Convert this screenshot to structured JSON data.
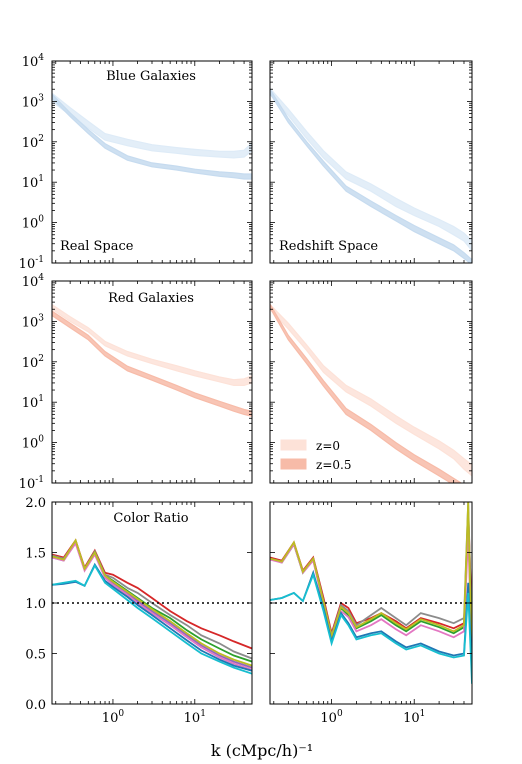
{
  "figure": {
    "xlabel": "k (cMpc/h)⁻¹",
    "legend": [
      {
        "label": "z=0",
        "color": "#fde2d8"
      },
      {
        "label": "z=0.5",
        "color": "#f7bba8"
      }
    ]
  },
  "chart_data": [
    {
      "type": "line",
      "panel": "blue-real",
      "annotations": [
        "Blue Galaxies",
        "Real Space"
      ],
      "xscale": "log",
      "yscale": "log",
      "xlim": [
        0.18,
        50
      ],
      "ylim": [
        0.1,
        10000
      ],
      "xticks": [
        "10^0",
        "10^1"
      ],
      "yticks": [
        "10^-1",
        "10^0",
        "10^1",
        "10^2",
        "10^3",
        "10^4"
      ],
      "series": [
        {
          "color": "#deebf7",
          "x": [
            0.18,
            0.3,
            0.5,
            0.8,
            1.5,
            3,
            6,
            10,
            20,
            30,
            40,
            50
          ],
          "lo": [
            1000,
            450,
            220,
            110,
            80,
            60,
            52,
            46,
            42,
            40,
            42,
            60
          ],
          "hi": [
            1600,
            700,
            320,
            160,
            115,
            85,
            72,
            65,
            58,
            58,
            62,
            95
          ]
        },
        {
          "color": "#c6dbef",
          "x": [
            0.18,
            0.3,
            0.5,
            0.8,
            1.5,
            3,
            6,
            10,
            20,
            30,
            40,
            50
          ],
          "lo": [
            1200,
            420,
            160,
            70,
            35,
            24,
            20,
            17,
            14,
            13,
            12,
            12
          ],
          "hi": [
            1500,
            520,
            200,
            90,
            45,
            30,
            25,
            21,
            18,
            17,
            16,
            16
          ]
        }
      ]
    },
    {
      "type": "line",
      "panel": "blue-redshift",
      "annotations": [
        "Redshift Space"
      ],
      "xscale": "log",
      "yscale": "log",
      "xlim": [
        0.18,
        50
      ],
      "ylim": [
        0.1,
        10000
      ],
      "xticks": [
        "10^0",
        "10^1"
      ],
      "series": [
        {
          "color": "#deebf7",
          "x": [
            0.18,
            0.3,
            0.5,
            0.8,
            1.5,
            3,
            6,
            10,
            20,
            30,
            40,
            50
          ],
          "lo": [
            1500,
            450,
            120,
            40,
            12,
            6,
            2.5,
            1.5,
            0.8,
            0.5,
            0.35,
            0.2
          ],
          "hi": [
            2100,
            650,
            180,
            60,
            18,
            9,
            4,
            2.3,
            1.2,
            0.8,
            0.55,
            0.35
          ]
        },
        {
          "color": "#c6dbef",
          "x": [
            0.18,
            0.3,
            0.5,
            0.8,
            1.5,
            3,
            6,
            10,
            20,
            30,
            40,
            50
          ],
          "lo": [
            1600,
            300,
            80,
            25,
            6,
            2.5,
            1.1,
            0.6,
            0.3,
            0.2,
            0.13,
            0.09
          ],
          "hi": [
            2000,
            380,
            100,
            33,
            8,
            3.4,
            1.5,
            0.85,
            0.42,
            0.28,
            0.18,
            0.12
          ]
        }
      ]
    },
    {
      "type": "line",
      "panel": "red-real",
      "annotations": [
        "Red Galaxies"
      ],
      "xscale": "log",
      "yscale": "log",
      "xlim": [
        0.18,
        50
      ],
      "ylim": [
        0.1,
        10000
      ],
      "xticks": [
        "10^0",
        "10^1"
      ],
      "yticks": [
        "10^-1",
        "10^0",
        "10^1",
        "10^2",
        "10^3",
        "10^4"
      ],
      "series": [
        {
          "color": "#fde2d8",
          "x": [
            0.18,
            0.3,
            0.5,
            0.8,
            1.5,
            3,
            6,
            10,
            20,
            30,
            40,
            50
          ],
          "lo": [
            2000,
            1000,
            550,
            250,
            140,
            90,
            60,
            45,
            32,
            26,
            26,
            30
          ],
          "hi": [
            2600,
            1300,
            700,
            320,
            180,
            115,
            80,
            60,
            42,
            36,
            38,
            45
          ]
        },
        {
          "color": "#f7bba8",
          "x": [
            0.18,
            0.3,
            0.5,
            0.8,
            1.5,
            3,
            6,
            10,
            20,
            30,
            40,
            50
          ],
          "lo": [
            1400,
            700,
            350,
            140,
            60,
            35,
            20,
            13,
            8,
            6,
            5,
            4.5
          ],
          "hi": [
            1800,
            900,
            450,
            180,
            78,
            45,
            26,
            17,
            10.5,
            8,
            6.6,
            6
          ]
        }
      ]
    },
    {
      "type": "line",
      "panel": "red-redshift",
      "xscale": "log",
      "yscale": "log",
      "xlim": [
        0.18,
        50
      ],
      "ylim": [
        0.1,
        10000
      ],
      "xticks": [
        "10^0",
        "10^1"
      ],
      "series": [
        {
          "color": "#fde2d8",
          "x": [
            0.18,
            0.3,
            0.5,
            0.8,
            1.5,
            3,
            6,
            10,
            20,
            30,
            40,
            50
          ],
          "lo": [
            2000,
            650,
            190,
            55,
            18,
            8,
            3,
            1.6,
            0.7,
            0.4,
            0.22,
            0.15
          ],
          "hi": [
            2600,
            900,
            260,
            80,
            26,
            12,
            4.6,
            2.4,
            1.1,
            0.65,
            0.4,
            0.28
          ]
        },
        {
          "color": "#f7bba8",
          "x": [
            0.18,
            0.3,
            0.5,
            0.8,
            1.5,
            3,
            6,
            10,
            20,
            30,
            40,
            50
          ],
          "lo": [
            2200,
            350,
            90,
            25,
            5,
            2,
            0.7,
            0.35,
            0.15,
            0.09,
            0.06,
            0.04
          ],
          "hi": [
            2700,
            450,
            120,
            34,
            7,
            2.8,
            1.0,
            0.5,
            0.22,
            0.13,
            0.09,
            0.06
          ]
        }
      ]
    },
    {
      "type": "line",
      "panel": "ratio-real",
      "annotations": [
        "Color Ratio"
      ],
      "xscale": "log",
      "yscale": "linear",
      "xlim": [
        0.18,
        50
      ],
      "ylim": [
        0.0,
        2.0
      ],
      "xticks": [
        "10^0",
        "10^1"
      ],
      "yticks": [
        "0.0",
        "0.5",
        "1.0",
        "1.5",
        "2.0"
      ],
      "reference_line": 1.0,
      "series": [
        {
          "color": "#d62728",
          "x": [
            0.18,
            0.25,
            0.35,
            0.45,
            0.6,
            0.8,
            1.0,
            1.5,
            2,
            3,
            5,
            8,
            12,
            20,
            30,
            50
          ],
          "y": [
            1.48,
            1.45,
            1.62,
            1.35,
            1.52,
            1.3,
            1.28,
            1.2,
            1.15,
            1.05,
            0.92,
            0.82,
            0.75,
            0.68,
            0.62,
            0.55
          ]
        },
        {
          "color": "#8c8c8c",
          "x": [
            0.18,
            0.25,
            0.35,
            0.45,
            0.6,
            0.8,
            1.0,
            1.5,
            2,
            3,
            5,
            8,
            12,
            20,
            30,
            50
          ],
          "y": [
            1.47,
            1.44,
            1.61,
            1.34,
            1.51,
            1.28,
            1.25,
            1.15,
            1.1,
            1.0,
            0.88,
            0.78,
            0.68,
            0.6,
            0.52,
            0.45
          ]
        },
        {
          "color": "#2ca02c",
          "x": [
            0.18,
            0.25,
            0.35,
            0.45,
            0.6,
            0.8,
            1.0,
            1.5,
            2,
            3,
            5,
            8,
            12,
            20,
            30,
            50
          ],
          "y": [
            1.46,
            1.43,
            1.6,
            1.33,
            1.5,
            1.27,
            1.22,
            1.12,
            1.05,
            0.95,
            0.85,
            0.73,
            0.64,
            0.55,
            0.48,
            0.42
          ]
        },
        {
          "color": "#9467bd",
          "x": [
            0.18,
            0.25,
            0.35,
            0.45,
            0.6,
            0.8,
            1.0,
            1.5,
            2,
            3,
            5,
            8,
            12,
            20,
            30,
            50
          ],
          "y": [
            1.45,
            1.42,
            1.6,
            1.33,
            1.49,
            1.26,
            1.2,
            1.1,
            1.02,
            0.92,
            0.8,
            0.68,
            0.58,
            0.48,
            0.42,
            0.36
          ]
        },
        {
          "color": "#e377c2",
          "x": [
            0.18,
            0.25,
            0.35,
            0.45,
            0.6,
            0.8,
            1.0,
            1.5,
            2,
            3,
            5,
            8,
            12,
            20,
            30,
            50
          ],
          "y": [
            1.45,
            1.42,
            1.59,
            1.32,
            1.48,
            1.25,
            1.18,
            1.08,
            1.0,
            0.9,
            0.78,
            0.66,
            0.56,
            0.46,
            0.4,
            0.34
          ]
        },
        {
          "color": "#bcbd22",
          "x": [
            0.18,
            0.25,
            0.35,
            0.45,
            0.6,
            0.8,
            1.0,
            1.5,
            2,
            3,
            5,
            8,
            12,
            20,
            30,
            50
          ],
          "y": [
            1.46,
            1.43,
            1.62,
            1.34,
            1.5,
            1.27,
            1.21,
            1.11,
            1.04,
            0.94,
            0.82,
            0.7,
            0.6,
            0.5,
            0.44,
            0.38
          ]
        },
        {
          "color": "#1f77b4",
          "x": [
            0.18,
            0.25,
            0.35,
            0.45,
            0.6,
            0.8,
            1.0,
            1.5,
            2,
            3,
            5,
            8,
            12,
            20,
            30,
            50
          ],
          "y": [
            1.18,
            1.19,
            1.21,
            1.17,
            1.38,
            1.22,
            1.16,
            1.06,
            0.98,
            0.88,
            0.75,
            0.63,
            0.53,
            0.44,
            0.38,
            0.33
          ]
        },
        {
          "color": "#17becf",
          "x": [
            0.18,
            0.25,
            0.35,
            0.45,
            0.6,
            0.8,
            1.0,
            1.5,
            2,
            3,
            5,
            8,
            12,
            20,
            30,
            50
          ],
          "y": [
            1.18,
            1.2,
            1.22,
            1.17,
            1.37,
            1.2,
            1.14,
            1.03,
            0.95,
            0.85,
            0.72,
            0.6,
            0.5,
            0.42,
            0.36,
            0.3
          ]
        }
      ]
    },
    {
      "type": "line",
      "panel": "ratio-redshift",
      "xscale": "log",
      "yscale": "linear",
      "xlim": [
        0.18,
        50
      ],
      "ylim": [
        0.0,
        2.0
      ],
      "xticks": [
        "10^0",
        "10^1"
      ],
      "reference_line": 1.0,
      "series": [
        {
          "color": "#d62728",
          "x": [
            0.18,
            0.25,
            0.35,
            0.45,
            0.6,
            0.8,
            1.0,
            1.3,
            1.6,
            2,
            3,
            4,
            6,
            8,
            12,
            20,
            30,
            40,
            45,
            50
          ],
          "y": [
            1.45,
            1.42,
            1.6,
            1.32,
            1.45,
            1.05,
            0.7,
            1.0,
            0.95,
            0.8,
            0.85,
            0.9,
            0.82,
            0.75,
            0.85,
            0.8,
            0.75,
            0.8,
            1.9,
            0.8
          ]
        },
        {
          "color": "#8c8c8c",
          "x": [
            0.18,
            0.25,
            0.35,
            0.45,
            0.6,
            0.8,
            1.0,
            1.3,
            1.6,
            2,
            3,
            4,
            6,
            8,
            12,
            20,
            30,
            40,
            45,
            50
          ],
          "y": [
            1.44,
            1.41,
            1.59,
            1.31,
            1.44,
            1.02,
            0.68,
            0.98,
            0.92,
            0.78,
            0.88,
            0.95,
            0.85,
            0.78,
            0.9,
            0.85,
            0.8,
            0.85,
            2.0,
            0.6
          ]
        },
        {
          "color": "#2ca02c",
          "x": [
            0.18,
            0.25,
            0.35,
            0.45,
            0.6,
            0.8,
            1.0,
            1.3,
            1.6,
            2,
            3,
            4,
            6,
            8,
            12,
            20,
            30,
            40,
            45,
            50
          ],
          "y": [
            1.44,
            1.4,
            1.58,
            1.3,
            1.43,
            1.0,
            0.66,
            0.95,
            0.88,
            0.75,
            0.82,
            0.88,
            0.78,
            0.72,
            0.82,
            0.76,
            0.7,
            0.76,
            1.8,
            0.5
          ]
        },
        {
          "color": "#e377c2",
          "x": [
            0.18,
            0.25,
            0.35,
            0.45,
            0.6,
            0.8,
            1.0,
            1.3,
            1.6,
            2,
            3,
            4,
            6,
            8,
            12,
            20,
            30,
            40,
            45,
            50
          ],
          "y": [
            1.43,
            1.4,
            1.58,
            1.3,
            1.42,
            0.98,
            0.62,
            0.92,
            0.86,
            0.72,
            0.78,
            0.84,
            0.74,
            0.68,
            0.78,
            0.72,
            0.66,
            0.72,
            1.7,
            0.4
          ]
        },
        {
          "color": "#bcbd22",
          "x": [
            0.18,
            0.25,
            0.35,
            0.45,
            0.6,
            0.8,
            1.0,
            1.3,
            1.6,
            2,
            3,
            4,
            6,
            8,
            12,
            20,
            30,
            40,
            45,
            50
          ],
          "y": [
            1.44,
            1.41,
            1.6,
            1.31,
            1.44,
            1.01,
            0.67,
            0.96,
            0.9,
            0.76,
            0.84,
            0.9,
            0.8,
            0.74,
            0.84,
            0.78,
            0.72,
            0.78,
            2.0,
            0.3
          ]
        },
        {
          "color": "#1f77b4",
          "x": [
            0.18,
            0.25,
            0.35,
            0.45,
            0.6,
            0.8,
            1.0,
            1.3,
            1.6,
            2,
            3,
            4,
            6,
            8,
            12,
            20,
            30,
            40,
            45,
            50
          ],
          "y": [
            1.03,
            1.05,
            1.1,
            1.02,
            1.3,
            0.95,
            0.62,
            0.9,
            0.8,
            0.66,
            0.7,
            0.72,
            0.62,
            0.56,
            0.6,
            0.52,
            0.48,
            0.5,
            1.2,
            0.3
          ]
        },
        {
          "color": "#17becf",
          "x": [
            0.18,
            0.25,
            0.35,
            0.45,
            0.6,
            0.8,
            1.0,
            1.3,
            1.6,
            2,
            3,
            4,
            6,
            8,
            12,
            20,
            30,
            40,
            45,
            50
          ],
          "y": [
            1.03,
            1.05,
            1.1,
            1.02,
            1.28,
            0.92,
            0.6,
            0.88,
            0.78,
            0.64,
            0.68,
            0.7,
            0.6,
            0.54,
            0.58,
            0.5,
            0.46,
            0.48,
            1.1,
            0.2
          ]
        }
      ]
    }
  ]
}
